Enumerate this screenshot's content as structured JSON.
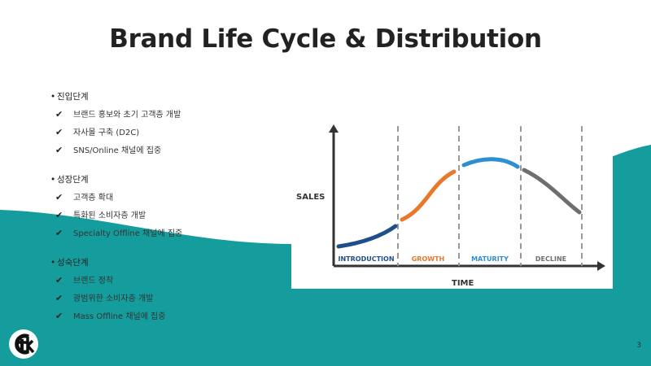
{
  "slide": {
    "title": "Brand Life Cycle & Distribution",
    "page_number": "3"
  },
  "sections": [
    {
      "heading": "진입단계",
      "items": [
        "브랜드 홍보와 초기 고객층 개발",
        "자사몰 구축 (D2C)",
        "SNS/Online 채널에 집중"
      ]
    },
    {
      "heading": "성장단계",
      "items": [
        "고객층 확대",
        "특화된 소비자층 개발",
        "Specialty Offline 채널에 집중"
      ]
    },
    {
      "heading": "성숙단계",
      "items": [
        "브랜드 정착",
        "광범위한 소비자층 개발",
        "Mass Offline 채널에 집중"
      ]
    }
  ],
  "chart": {
    "y_label": "SALES",
    "x_label": "TIME",
    "stages": [
      {
        "label": "INTRODUCTION",
        "color": "#1f4e8c"
      },
      {
        "label": "GROWTH",
        "color": "#e8782a"
      },
      {
        "label": "MATURITY",
        "color": "#2e8fd0"
      },
      {
        "label": "DECLINE",
        "color": "#6e6e6e"
      }
    ]
  },
  "colors": {
    "teal": "#159c9c",
    "title": "#222222"
  }
}
